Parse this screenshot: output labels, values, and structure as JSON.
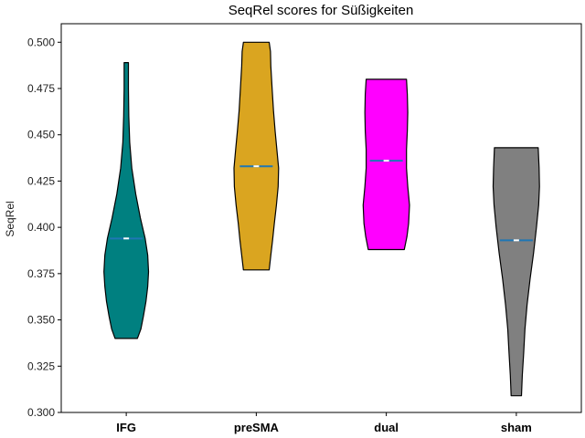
{
  "chart_data": {
    "type": "violin",
    "title": "SeqRel scores for Süßigkeiten",
    "xlabel": "",
    "ylabel": "SeqRel",
    "ylim": [
      0.3,
      0.51
    ],
    "yticks": [
      "0.300",
      "0.325",
      "0.350",
      "0.375",
      "0.400",
      "0.425",
      "0.450",
      "0.475",
      "0.500"
    ],
    "categories": [
      "IFG",
      "preSMA",
      "dual",
      "sham"
    ],
    "grid": false,
    "legend": "none",
    "series": [
      {
        "category": "IFG",
        "color": "#008080",
        "min": 0.34,
        "max": 0.489,
        "median": 0.394,
        "mean": 0.394,
        "profile": [
          [
            0.34,
            0.26
          ],
          [
            0.345,
            0.34
          ],
          [
            0.352,
            0.4
          ],
          [
            0.36,
            0.46
          ],
          [
            0.368,
            0.5
          ],
          [
            0.376,
            0.52
          ],
          [
            0.385,
            0.5
          ],
          [
            0.394,
            0.44
          ],
          [
            0.405,
            0.33
          ],
          [
            0.418,
            0.22
          ],
          [
            0.432,
            0.13
          ],
          [
            0.446,
            0.08
          ],
          [
            0.46,
            0.06
          ],
          [
            0.475,
            0.05
          ],
          [
            0.489,
            0.05
          ]
        ]
      },
      {
        "category": "preSMA",
        "color": "#DAA520",
        "min": 0.377,
        "max": 0.5,
        "median": 0.433,
        "mean": 0.433,
        "profile": [
          [
            0.377,
            0.3
          ],
          [
            0.385,
            0.34
          ],
          [
            0.393,
            0.38
          ],
          [
            0.402,
            0.42
          ],
          [
            0.412,
            0.47
          ],
          [
            0.422,
            0.51
          ],
          [
            0.432,
            0.52
          ],
          [
            0.442,
            0.48
          ],
          [
            0.452,
            0.44
          ],
          [
            0.463,
            0.4
          ],
          [
            0.475,
            0.37
          ],
          [
            0.487,
            0.34
          ],
          [
            0.495,
            0.33
          ],
          [
            0.5,
            0.3
          ]
        ]
      },
      {
        "category": "dual",
        "color": "#FF00FF",
        "min": 0.388,
        "max": 0.48,
        "median": 0.436,
        "mean": 0.436,
        "profile": [
          [
            0.388,
            0.42
          ],
          [
            0.395,
            0.48
          ],
          [
            0.402,
            0.52
          ],
          [
            0.412,
            0.54
          ],
          [
            0.422,
            0.5
          ],
          [
            0.432,
            0.47
          ],
          [
            0.442,
            0.47
          ],
          [
            0.452,
            0.49
          ],
          [
            0.462,
            0.5
          ],
          [
            0.472,
            0.49
          ],
          [
            0.48,
            0.47
          ]
        ]
      },
      {
        "category": "sham",
        "color": "#808080",
        "min": 0.309,
        "max": 0.443,
        "median": 0.393,
        "mean": 0.393,
        "profile": [
          [
            0.309,
            0.12
          ],
          [
            0.32,
            0.14
          ],
          [
            0.332,
            0.17
          ],
          [
            0.345,
            0.2
          ],
          [
            0.358,
            0.25
          ],
          [
            0.372,
            0.32
          ],
          [
            0.386,
            0.4
          ],
          [
            0.4,
            0.47
          ],
          [
            0.412,
            0.52
          ],
          [
            0.422,
            0.54
          ],
          [
            0.432,
            0.53
          ],
          [
            0.443,
            0.51
          ]
        ]
      }
    ]
  }
}
